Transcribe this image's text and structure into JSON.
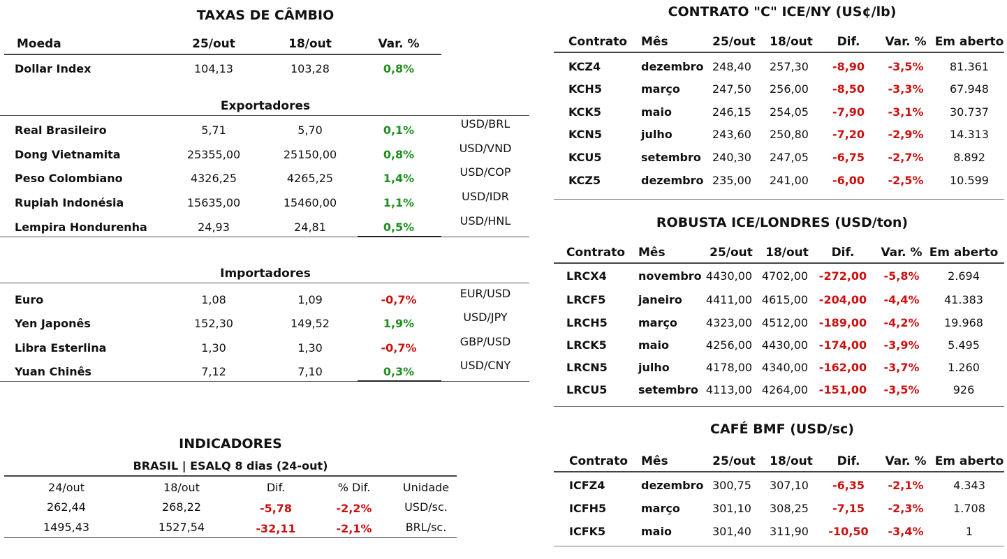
{
  "fx": {
    "title": "TAXAS DE CÂMBIO",
    "headers": [
      "Moeda",
      "25/out",
      "18/out",
      "Var. %"
    ],
    "dollar_index": {
      "name": "Dollar Index",
      "v1": "104,13",
      "v2": "103,28",
      "var": "0,8%"
    },
    "exporters_title": "Exportadores",
    "exporters": [
      {
        "name": "Real Brasileiro",
        "v1": "5,71",
        "v2": "5,70",
        "var": "0,1%",
        "pair": "USD/BRL"
      },
      {
        "name": "Dong Vietnamita",
        "v1": "25355,00",
        "v2": "25150,00",
        "var": "0,8%",
        "pair": "USD/VND"
      },
      {
        "name": "Peso Colombiano",
        "v1": "4326,25",
        "v2": "4265,25",
        "var": "1,4%",
        "pair": "USD/COP"
      },
      {
        "name": "Rupiah Indonésia",
        "v1": "15635,00",
        "v2": "15460,00",
        "var": "1,1%",
        "pair": "USD/IDR"
      },
      {
        "name": "Lempira Hondurenha",
        "v1": "24,93",
        "v2": "24,81",
        "var": "0,5%",
        "pair": "USD/HNL"
      }
    ],
    "importers_title": "Importadores",
    "importers": [
      {
        "name": "Euro",
        "v1": "1,08",
        "v2": "1,09",
        "var": "-0,7%",
        "pair": "EUR/USD"
      },
      {
        "name": "Yen Japonês",
        "v1": "152,30",
        "v2": "149,52",
        "var": "1,9%",
        "pair": "USD/JPY"
      },
      {
        "name": "Libra Esterlina",
        "v1": "1,30",
        "v2": "1,30",
        "var": "-0,7%",
        "pair": "GBP/USD"
      },
      {
        "name": "Yuan Chinês",
        "v1": "7,12",
        "v2": "7,10",
        "var": "0,3%",
        "pair": "USD/CNY"
      }
    ]
  },
  "indicators": {
    "title": "INDICADORES",
    "subtitle": "BRASIL | ESALQ 8 dias (24-out)",
    "headers": [
      "24/out",
      "18/out",
      "Dif.",
      "% Dif.",
      "Unidade"
    ],
    "rows": [
      {
        "v1": "262,44",
        "v2": "268,22",
        "dif": "-5,78",
        "pct": "-2,2%",
        "unit": "USD/sc."
      },
      {
        "v1": "1495,43",
        "v2": "1527,54",
        "dif": "-32,11",
        "pct": "-2,1%",
        "unit": "BRL/sc."
      }
    ]
  },
  "ice_ny": {
    "title": "CONTRATO \"C\" ICE/NY (US¢/lb)",
    "headers": [
      "Contrato",
      "Mês",
      "25/out",
      "18/out",
      "Dif.",
      "Var. %",
      "Em aberto"
    ],
    "rows": [
      {
        "c": "KCZ4",
        "m": "dezembro",
        "v1": "248,40",
        "v2": "257,30",
        "dif": "-8,90",
        "var": "-3,5%",
        "oi": "81.361"
      },
      {
        "c": "KCH5",
        "m": "março",
        "v1": "247,50",
        "v2": "256,00",
        "dif": "-8,50",
        "var": "-3,3%",
        "oi": "67.948"
      },
      {
        "c": "KCK5",
        "m": "maio",
        "v1": "246,15",
        "v2": "254,05",
        "dif": "-7,90",
        "var": "-3,1%",
        "oi": "30.737"
      },
      {
        "c": "KCN5",
        "m": "julho",
        "v1": "243,60",
        "v2": "250,80",
        "dif": "-7,20",
        "var": "-2,9%",
        "oi": "14.313"
      },
      {
        "c": "KCU5",
        "m": "setembro",
        "v1": "240,30",
        "v2": "247,05",
        "dif": "-6,75",
        "var": "-2,7%",
        "oi": "8.892"
      },
      {
        "c": "KCZ5",
        "m": "dezembro",
        "v1": "235,00",
        "v2": "241,00",
        "dif": "-6,00",
        "var": "-2,5%",
        "oi": "10.599"
      }
    ]
  },
  "robusta": {
    "title": "ROBUSTA ICE/LONDRES (USD/ton)",
    "headers": [
      "Contrato",
      "Mês",
      "25/out",
      "18/out",
      "Dif.",
      "Var. %",
      "Em aberto"
    ],
    "rows": [
      {
        "c": "LRCX4",
        "m": "novembro",
        "v1": "4430,00",
        "v2": "4702,00",
        "dif": "-272,00",
        "var": "-5,8%",
        "oi": "2.694"
      },
      {
        "c": "LRCF5",
        "m": "janeiro",
        "v1": "4411,00",
        "v2": "4615,00",
        "dif": "-204,00",
        "var": "-4,4%",
        "oi": "41.383"
      },
      {
        "c": "LRCH5",
        "m": "março",
        "v1": "4323,00",
        "v2": "4512,00",
        "dif": "-189,00",
        "var": "-4,2%",
        "oi": "19.968"
      },
      {
        "c": "LRCK5",
        "m": "maio",
        "v1": "4256,00",
        "v2": "4430,00",
        "dif": "-174,00",
        "var": "-3,9%",
        "oi": "5.495"
      },
      {
        "c": "LRCN5",
        "m": "julho",
        "v1": "4178,00",
        "v2": "4340,00",
        "dif": "-162,00",
        "var": "-3,7%",
        "oi": "1.260"
      },
      {
        "c": "LRCU5",
        "m": "setembro",
        "v1": "4113,00",
        "v2": "4264,00",
        "dif": "-151,00",
        "var": "-3,5%",
        "oi": "926"
      }
    ]
  },
  "bmf": {
    "title": "CAFÉ BMF (USD/sc)",
    "headers": [
      "Contrato",
      "Mês",
      "25/out",
      "18/out",
      "Dif.",
      "Var. %",
      "Em aberto"
    ],
    "rows": [
      {
        "c": "ICFZ4",
        "m": "dezembro",
        "v1": "300,75",
        "v2": "307,10",
        "dif": "-6,35",
        "var": "-2,1%",
        "oi": "4.343"
      },
      {
        "c": "ICFH5",
        "m": "março",
        "v1": "301,10",
        "v2": "308,25",
        "dif": "-7,15",
        "var": "-2,3%",
        "oi": "1.708"
      },
      {
        "c": "ICFK5",
        "m": "maio",
        "v1": "301,40",
        "v2": "311,90",
        "dif": "-10,50",
        "var": "-3,4%",
        "oi": "1"
      }
    ]
  }
}
